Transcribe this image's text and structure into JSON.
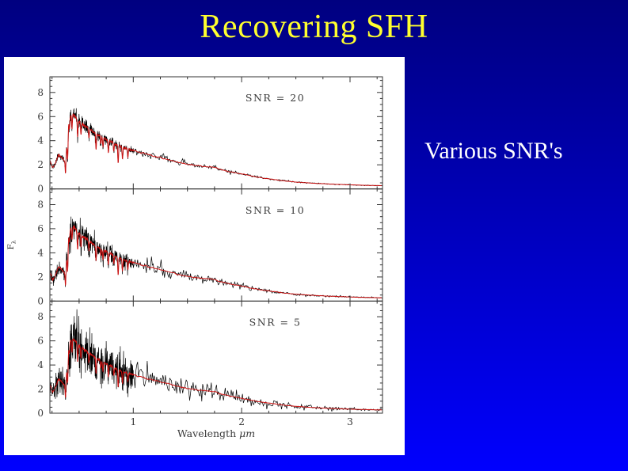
{
  "slide": {
    "title": "Recovering SFH",
    "caption": "Various SNR's",
    "colors": {
      "bg_top": "#000080",
      "bg_bottom": "#0000fe",
      "title": "#ffff2e",
      "caption": "#ffffff",
      "panel_bg": "#ffffff"
    }
  },
  "chart_data": {
    "type": "line",
    "title": "",
    "xlabel": "Wavelength μm",
    "xlabel_main": "Wavelength",
    "xlabel_unit": "μm",
    "ylabel": "Fλ",
    "ylabel_main": "F",
    "ylabel_sub": "λ",
    "xlim": [
      0.23,
      3.3
    ],
    "ylim": [
      0,
      9.3
    ],
    "x_major_ticks": [
      1,
      2,
      3
    ],
    "x_minor_step": 0.25,
    "y_major_ticks": [
      0,
      2,
      4,
      6,
      8
    ],
    "y_minor_step": 0.5,
    "grid": false,
    "legend": "none",
    "panels": [
      {
        "label": "SNR = 20",
        "snr": 20,
        "seed": 11
      },
      {
        "label": "SNR = 10",
        "snr": 10,
        "seed": 22
      },
      {
        "label": "SNR = 5",
        "snr": 5,
        "seed": 33
      }
    ],
    "label_anchor": {
      "wavelength": 2.31,
      "flux": 7.25
    },
    "series_colors": {
      "noisy": "#000000",
      "model": "#cc1111",
      "frame": "#333333",
      "text": "#3a3a3a"
    },
    "base_spectrum": [
      [
        0.23,
        2.4
      ],
      [
        0.255,
        1.75
      ],
      [
        0.28,
        2.1
      ],
      [
        0.31,
        2.85
      ],
      [
        0.34,
        2.6
      ],
      [
        0.365,
        2.3
      ],
      [
        0.385,
        3.4
      ],
      [
        0.405,
        5.6
      ],
      [
        0.43,
        6.25
      ],
      [
        0.46,
        6.05
      ],
      [
        0.5,
        5.6
      ],
      [
        0.55,
        5.25
      ],
      [
        0.6,
        4.95
      ],
      [
        0.65,
        4.6
      ],
      [
        0.7,
        4.35
      ],
      [
        0.75,
        4.1
      ],
      [
        0.8,
        3.9
      ],
      [
        0.85,
        3.65
      ],
      [
        0.9,
        3.45
      ],
      [
        0.95,
        3.3
      ],
      [
        1.0,
        3.2
      ],
      [
        1.1,
        2.95
      ],
      [
        1.2,
        2.7
      ],
      [
        1.3,
        2.5
      ],
      [
        1.4,
        2.25
      ],
      [
        1.5,
        2.05
      ],
      [
        1.6,
        1.92
      ],
      [
        1.68,
        1.85
      ],
      [
        1.75,
        1.78
      ],
      [
        1.8,
        1.62
      ],
      [
        1.9,
        1.42
      ],
      [
        2.0,
        1.25
      ],
      [
        2.1,
        1.05
      ],
      [
        2.2,
        0.9
      ],
      [
        2.3,
        0.78
      ],
      [
        2.4,
        0.66
      ],
      [
        2.5,
        0.57
      ],
      [
        2.7,
        0.45
      ],
      [
        2.9,
        0.37
      ],
      [
        3.1,
        0.31
      ],
      [
        3.3,
        0.27
      ]
    ],
    "absorption_lines": [
      [
        0.374,
        1.5
      ],
      [
        0.394,
        1.9
      ],
      [
        0.41,
        0.8
      ],
      [
        0.434,
        1.2
      ],
      [
        0.486,
        1.5
      ],
      [
        0.517,
        1.0
      ],
      [
        0.59,
        0.8
      ],
      [
        0.656,
        1.3
      ],
      [
        0.7,
        0.6
      ],
      [
        0.72,
        0.8
      ],
      [
        0.77,
        1.0
      ],
      [
        0.82,
        0.7
      ],
      [
        0.86,
        1.5
      ],
      [
        0.9,
        1.0
      ],
      [
        0.95,
        0.7
      ]
    ]
  }
}
